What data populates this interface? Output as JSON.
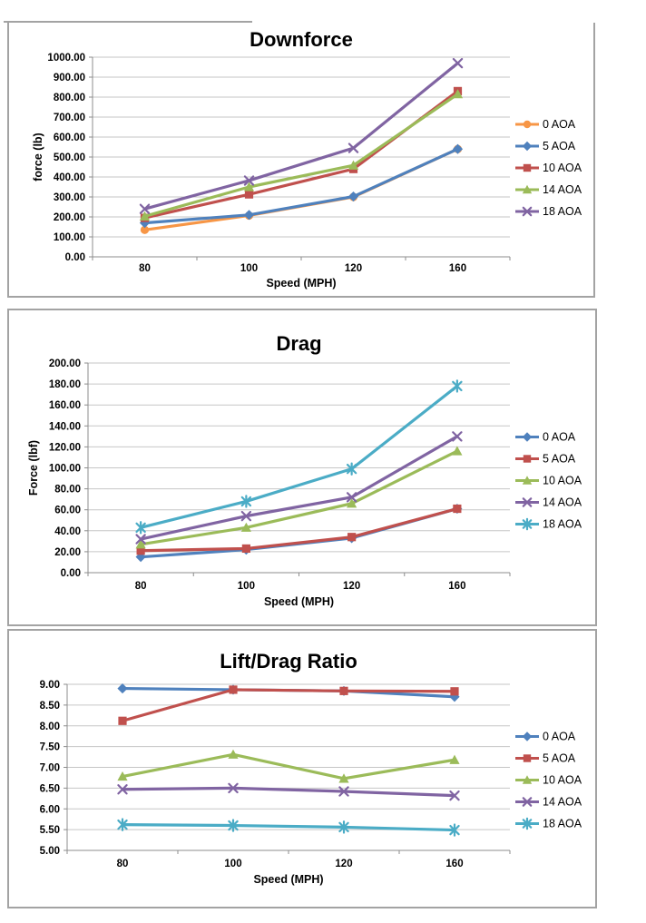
{
  "page": {
    "background": "#ffffff",
    "border_color": "#a3a3a3"
  },
  "palette": {
    "orange": "#F79646",
    "blue": "#4F81BD",
    "red": "#C0504D",
    "green": "#9BBB59",
    "purple": "#8064A2",
    "cyan": "#4BACC6",
    "gridline": "#c6c6c6",
    "axis": "#8c8c8c",
    "text": "#000000"
  },
  "chart_data": [
    {
      "type": "line",
      "title": "Downforce",
      "xlabel": "Speed (MPH)",
      "ylabel": "force (lb)",
      "categories": [
        "80",
        "100",
        "120",
        "160"
      ],
      "x_values": [
        80,
        100,
        120,
        160
      ],
      "ylim": [
        0,
        1000
      ],
      "ystep": 100,
      "y_tick_labels": [
        "1000.00",
        "900.00",
        "800.00",
        "700.00",
        "600.00",
        "500.00",
        "400.00",
        "300.00",
        "200.00",
        "100.00",
        "0.00"
      ],
      "grid": true,
      "legend_position": "right",
      "series": [
        {
          "name": "0 AOA",
          "color": "#F79646",
          "marker": "circle",
          "values": [
            135,
            207,
            300,
            540
          ]
        },
        {
          "name": "5 AOA",
          "color": "#4F81BD",
          "marker": "diamond",
          "values": [
            170,
            210,
            302,
            540
          ]
        },
        {
          "name": "10 AOA",
          "color": "#C0504D",
          "marker": "square",
          "values": [
            195,
            313,
            440,
            830
          ]
        },
        {
          "name": "14 AOA",
          "color": "#9BBB59",
          "marker": "triangle",
          "values": [
            203,
            350,
            458,
            815
          ]
        },
        {
          "name": "18 AOA",
          "color": "#8064A2",
          "marker": "x",
          "values": [
            240,
            382,
            545,
            970
          ]
        }
      ]
    },
    {
      "type": "line",
      "title": "Drag",
      "xlabel": "Speed (MPH)",
      "ylabel": "Force (lbf)",
      "categories": [
        "80",
        "100",
        "120",
        "160"
      ],
      "x_values": [
        80,
        100,
        120,
        160
      ],
      "ylim": [
        0,
        200
      ],
      "ystep": 20,
      "y_tick_labels": [
        "200.00",
        "180.00",
        "160.00",
        "140.00",
        "120.00",
        "100.00",
        "80.00",
        "60.00",
        "40.00",
        "20.00",
        "0.00"
      ],
      "grid": true,
      "legend_position": "right",
      "series": [
        {
          "name": "0 AOA",
          "color": "#4F81BD",
          "marker": "diamond",
          "values": [
            15,
            22,
            33,
            61
          ]
        },
        {
          "name": "5 AOA",
          "color": "#C0504D",
          "marker": "square",
          "values": [
            21,
            23,
            34,
            61
          ]
        },
        {
          "name": "10 AOA",
          "color": "#9BBB59",
          "marker": "triangle",
          "values": [
            27,
            43,
            66,
            116
          ]
        },
        {
          "name": "14 AOA",
          "color": "#8064A2",
          "marker": "x",
          "values": [
            32,
            54,
            72,
            130
          ]
        },
        {
          "name": "18 AOA",
          "color": "#4BACC6",
          "marker": "asterisk",
          "values": [
            43,
            68,
            99,
            178
          ]
        }
      ]
    },
    {
      "type": "line",
      "title": "Lift/Drag Ratio",
      "xlabel": "Speed (MPH)",
      "ylabel": "",
      "categories": [
        "80",
        "100",
        "120",
        "160"
      ],
      "x_values": [
        80,
        100,
        120,
        160
      ],
      "ylim": [
        5,
        9
      ],
      "ystep": 0.5,
      "y_tick_labels": [
        "9.00",
        "8.50",
        "8.00",
        "7.50",
        "7.00",
        "6.50",
        "6.00",
        "5.50",
        "5.00"
      ],
      "grid": true,
      "legend_position": "right",
      "series": [
        {
          "name": "0 AOA",
          "color": "#4F81BD",
          "marker": "diamond",
          "values": [
            8.9,
            8.87,
            8.84,
            8.7
          ]
        },
        {
          "name": "5 AOA",
          "color": "#C0504D",
          "marker": "square",
          "values": [
            8.12,
            8.87,
            8.84,
            8.83
          ]
        },
        {
          "name": "10 AOA",
          "color": "#9BBB59",
          "marker": "triangle",
          "values": [
            6.78,
            7.31,
            6.73,
            7.18
          ]
        },
        {
          "name": "14 AOA",
          "color": "#8064A2",
          "marker": "x",
          "values": [
            6.47,
            6.5,
            6.42,
            6.32
          ]
        },
        {
          "name": "18 AOA",
          "color": "#4BACC6",
          "marker": "asterisk",
          "values": [
            5.62,
            5.6,
            5.56,
            5.49
          ]
        }
      ]
    }
  ]
}
